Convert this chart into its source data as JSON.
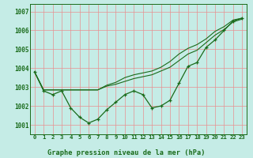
{
  "title": "Graphe pression niveau de la mer (hPa)",
  "background_color": "#c5ece6",
  "grid_color": "#e89090",
  "line_color": "#1a6b1a",
  "marker_color": "#1a6b1a",
  "xlim": [
    -0.5,
    23.5
  ],
  "ylim": [
    1000.5,
    1007.4
  ],
  "yticks": [
    1001,
    1002,
    1003,
    1004,
    1005,
    1006,
    1007
  ],
  "xticks": [
    0,
    1,
    2,
    3,
    4,
    5,
    6,
    7,
    8,
    9,
    10,
    11,
    12,
    13,
    14,
    15,
    16,
    17,
    18,
    19,
    20,
    21,
    22,
    23
  ],
  "series_main": [
    1003.8,
    1002.8,
    1002.6,
    1002.8,
    1001.9,
    1001.4,
    1001.1,
    1001.3,
    1001.8,
    1002.2,
    1002.6,
    1002.8,
    1002.6,
    1001.9,
    1002.0,
    1002.3,
    1003.2,
    1004.1,
    1004.3,
    1005.1,
    1005.5,
    1006.0,
    1006.5,
    1006.65
  ],
  "series_line1": [
    1003.8,
    1002.85,
    1002.85,
    1002.85,
    1002.85,
    1002.85,
    1002.85,
    1002.85,
    1003.05,
    1003.15,
    1003.3,
    1003.45,
    1003.55,
    1003.65,
    1003.85,
    1004.05,
    1004.4,
    1004.75,
    1004.95,
    1005.35,
    1005.75,
    1006.05,
    1006.45,
    1006.6
  ],
  "series_line2": [
    1003.8,
    1002.85,
    1002.85,
    1002.85,
    1002.85,
    1002.85,
    1002.85,
    1002.85,
    1003.1,
    1003.25,
    1003.5,
    1003.65,
    1003.75,
    1003.85,
    1004.05,
    1004.35,
    1004.75,
    1005.05,
    1005.25,
    1005.55,
    1005.95,
    1006.2,
    1006.55,
    1006.65
  ]
}
